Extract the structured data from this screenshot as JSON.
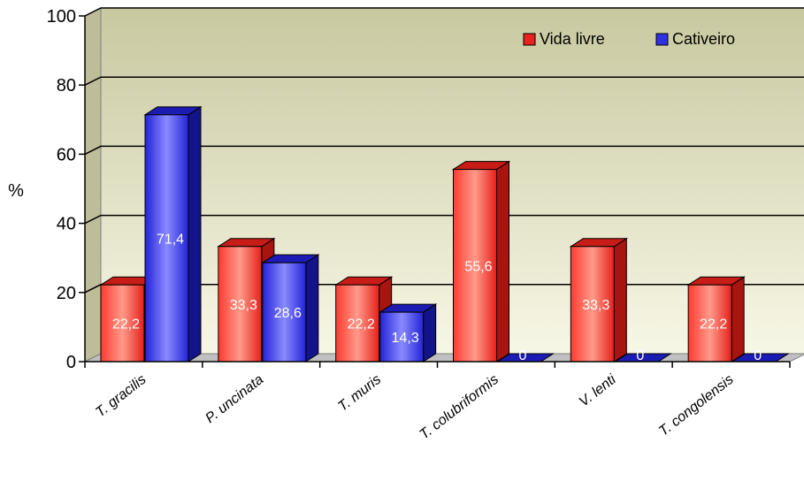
{
  "chart_data": {
    "type": "bar",
    "title": "",
    "xlabel": "",
    "ylabel": "%",
    "ylim": [
      0,
      100
    ],
    "yticks": [
      0,
      20,
      40,
      60,
      80,
      100
    ],
    "grid": true,
    "legend_position": "top-right",
    "categories": [
      "T. gracilis",
      "P. uncinata",
      "T. muris",
      "T. colubriformis",
      "V. lenti",
      "T. congolensis"
    ],
    "series": [
      {
        "name": "Vida livre",
        "values": [
          22.2,
          33.3,
          22.2,
          55.6,
          33.3,
          22.2
        ],
        "labels": [
          "22,2",
          "33,3",
          "22,2",
          "55,6",
          "33,3",
          "22,2"
        ],
        "color": "#e8221f"
      },
      {
        "name": "Cativeiro",
        "values": [
          71.4,
          28.6,
          14.3,
          0,
          0,
          0
        ],
        "labels": [
          "71,4",
          "28,6",
          "14,3",
          "0",
          "0",
          "0"
        ],
        "color": "#2f2fe6"
      }
    ]
  }
}
